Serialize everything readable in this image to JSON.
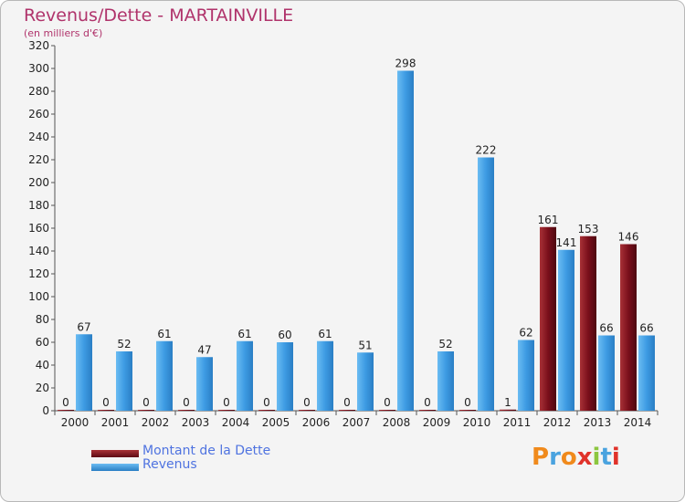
{
  "title": "Revenus/Dette - MARTAINVILLE",
  "subtitle": "(en milliers d'€)",
  "brand": {
    "text": "Proxiti",
    "letters": [
      "P",
      "r",
      "o",
      "x",
      "i",
      "t",
      "i"
    ]
  },
  "colors": {
    "title": "#b0336b",
    "dette": "#7a0f1b",
    "revenus": "#3d9be3",
    "legend_text": "#4f73e0",
    "brand": [
      "#f08a1c",
      "#4aa3df",
      "#f08a1c",
      "#e0322a",
      "#8cc63f",
      "#4aa3df",
      "#e0322a"
    ]
  },
  "chart_data": {
    "type": "bar",
    "title": "Revenus/Dette - MARTAINVILLE",
    "subtitle": "(en milliers d'€)",
    "xlabel": "",
    "ylabel": "",
    "ylim": [
      0,
      320
    ],
    "yticks": [
      0,
      20,
      40,
      60,
      80,
      100,
      120,
      140,
      160,
      180,
      200,
      220,
      240,
      260,
      280,
      300,
      320
    ],
    "grid": false,
    "legend_position": "bottom-left",
    "categories": [
      "2000",
      "2001",
      "2002",
      "2003",
      "2004",
      "2005",
      "2006",
      "2007",
      "2008",
      "2009",
      "2010",
      "2011",
      "2012",
      "2013",
      "2014"
    ],
    "series": [
      {
        "name": "Montant de la Dette",
        "color": "#7a0f1b",
        "values": [
          0,
          0,
          0,
          0,
          0,
          0,
          0,
          0,
          0,
          0,
          0,
          1,
          161,
          153,
          146
        ]
      },
      {
        "name": "Revenus",
        "color": "#3d9be3",
        "values": [
          67,
          52,
          61,
          47,
          61,
          60,
          61,
          51,
          298,
          52,
          222,
          62,
          141,
          66,
          66
        ]
      }
    ]
  }
}
